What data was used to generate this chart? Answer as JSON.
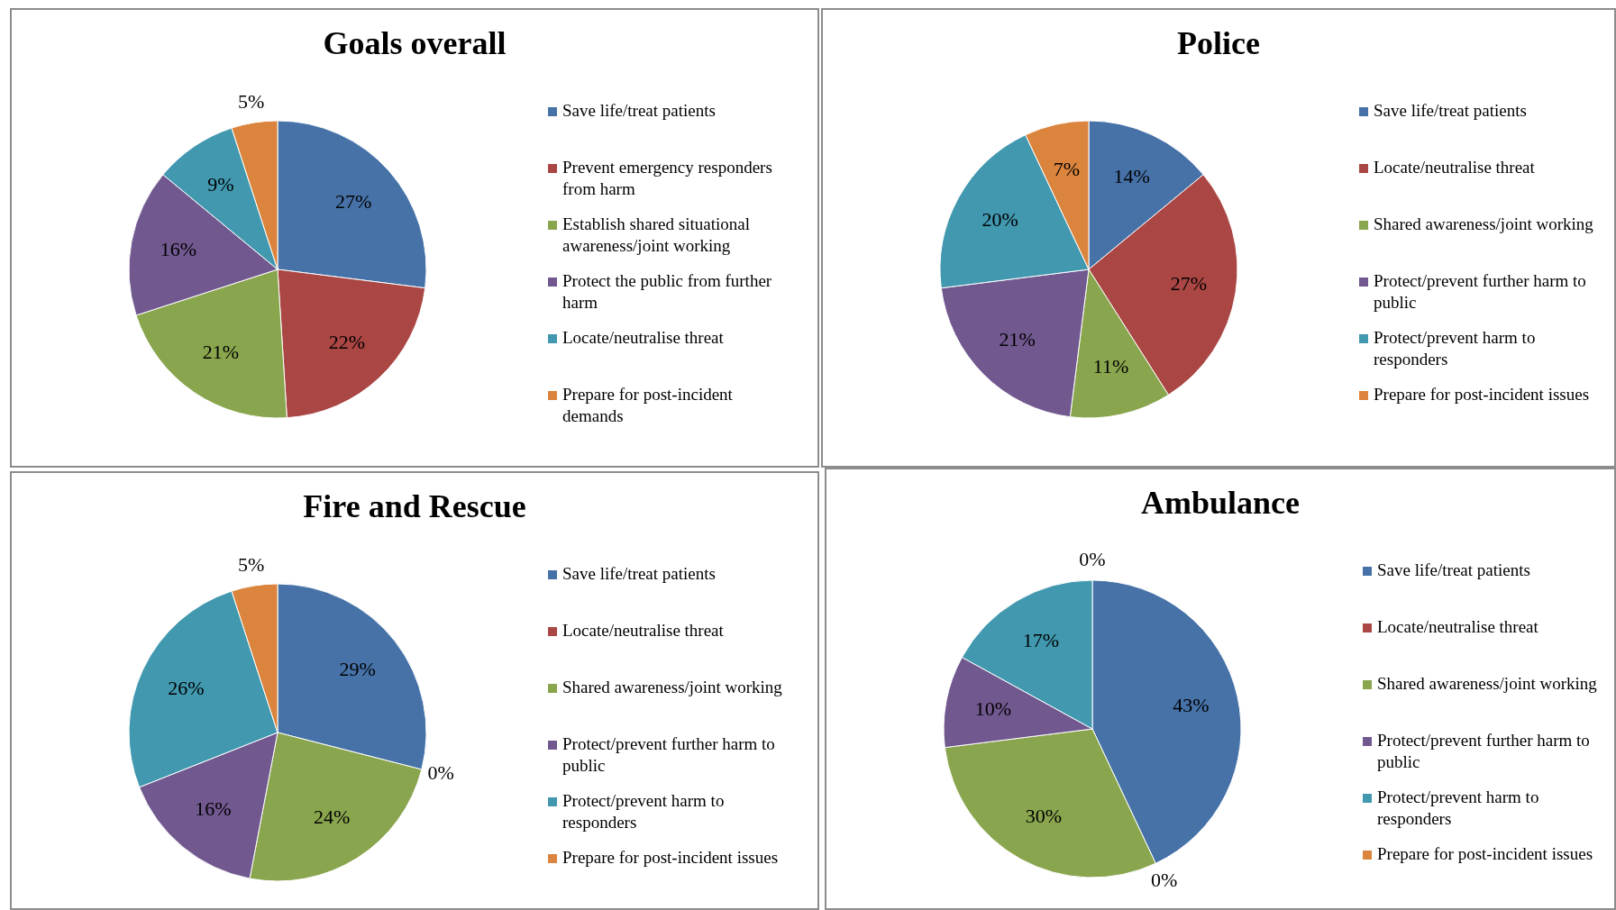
{
  "chart_data": [
    {
      "type": "pie",
      "title": "Goals overall",
      "categories": [
        "Save life/treat patients",
        "Prevent emergency responders from harm",
        "Establish shared situational awareness/joint working",
        "Protect the public from further harm",
        "Locate/neutralise threat",
        "Prepare for post-incident demands"
      ],
      "values": [
        27,
        22,
        21,
        16,
        9,
        5
      ],
      "value_labels": [
        "27%",
        "22%",
        "21%",
        "16%",
        "9%",
        "5%"
      ],
      "colors": [
        "#4672a8",
        "#aa4643",
        "#89a54e",
        "#71588f",
        "#4198af",
        "#db843d"
      ],
      "legend": "right"
    },
    {
      "type": "pie",
      "title": "Police",
      "categories": [
        "Save life/treat patients",
        "Locate/neutralise threat",
        "Shared awareness/joint working",
        "Protect/prevent further harm to public",
        "Protect/prevent harm to responders",
        "Prepare for post-incident issues"
      ],
      "values": [
        14,
        27,
        11,
        21,
        20,
        7
      ],
      "value_labels": [
        "14%",
        "27%",
        "11%",
        "21%",
        "20%",
        "7%"
      ],
      "colors": [
        "#4672a8",
        "#aa4643",
        "#89a54e",
        "#71588f",
        "#4198af",
        "#db843d"
      ],
      "legend": "right"
    },
    {
      "type": "pie",
      "title": "Fire and Rescue",
      "categories": [
        "Save life/treat patients",
        "Locate/neutralise threat",
        "Shared awareness/joint working",
        "Protect/prevent further harm to public",
        "Protect/prevent harm to responders",
        "Prepare for post-incident issues"
      ],
      "values": [
        29,
        0,
        24,
        16,
        26,
        5
      ],
      "value_labels": [
        "29%",
        "0%",
        "24%",
        "16%",
        "26%",
        "5%"
      ],
      "colors": [
        "#4672a8",
        "#aa4643",
        "#89a54e",
        "#71588f",
        "#4198af",
        "#db843d"
      ],
      "legend": "right"
    },
    {
      "type": "pie",
      "title": "Ambulance",
      "categories": [
        "Save life/treat patients",
        "Locate/neutralise threat",
        "Shared awareness/joint working",
        "Protect/prevent further harm to public",
        "Protect/prevent harm to responders",
        "Prepare for post-incident issues"
      ],
      "values": [
        43,
        0,
        30,
        10,
        17,
        0
      ],
      "value_labels": [
        "43%",
        "0%",
        "30%",
        "10%",
        "17%",
        "0%"
      ],
      "colors": [
        "#4672a8",
        "#aa4643",
        "#89a54e",
        "#71588f",
        "#4198af",
        "#db843d"
      ],
      "legend": "right"
    }
  ]
}
